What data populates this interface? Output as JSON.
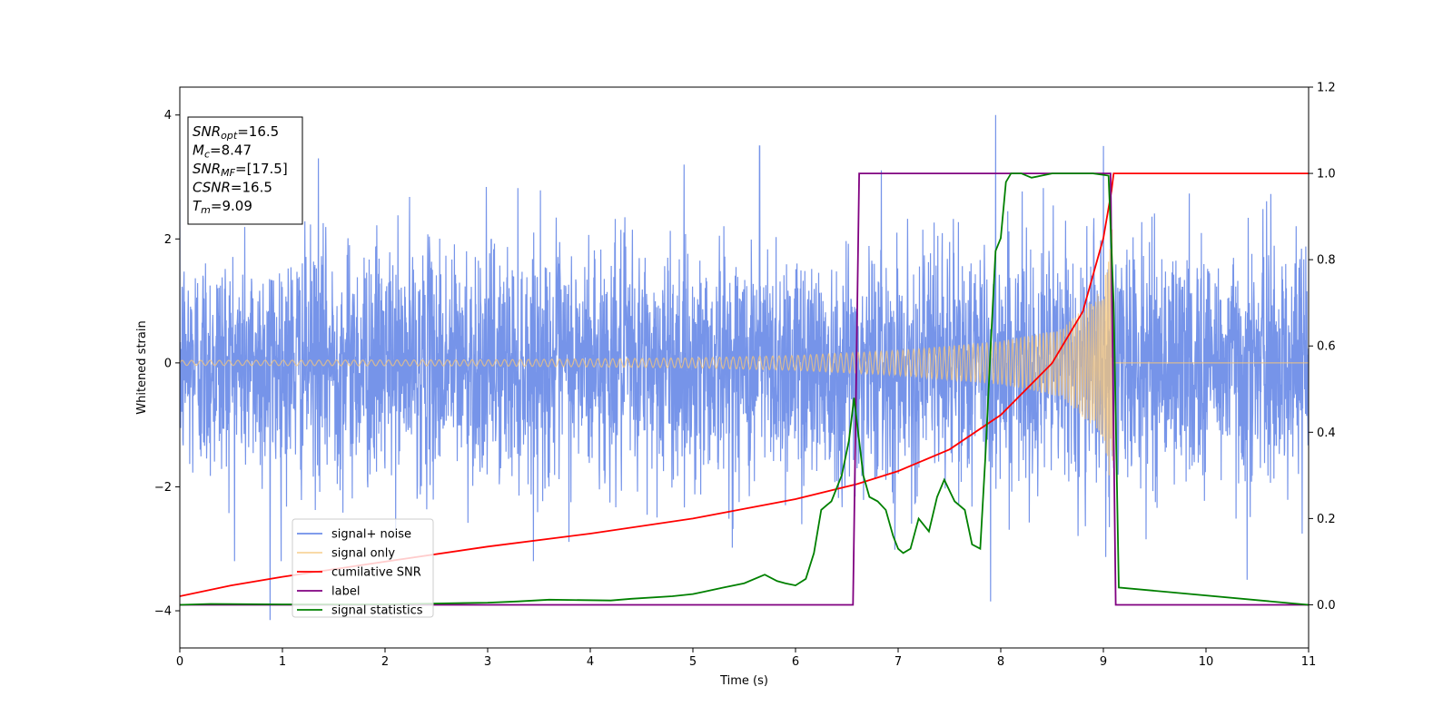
{
  "chart_data": {
    "type": "line",
    "xlabel": "Time (s)",
    "ylabel": "Whitened strain",
    "xlim": [
      0,
      11
    ],
    "ylim": [
      -4.6,
      4.45
    ],
    "y2lim": [
      -0.1,
      1.2
    ],
    "xticks": [
      0,
      1,
      2,
      3,
      4,
      5,
      6,
      7,
      8,
      9,
      10,
      11
    ],
    "yticks": [
      -4,
      -2,
      0,
      2,
      4
    ],
    "y2ticks": [
      0.0,
      0.2,
      0.4,
      0.6,
      0.8,
      1.0,
      1.2
    ],
    "grid": false,
    "legend_position": "lower-left",
    "colors": {
      "signal_noise": "#6f8ee8",
      "signal_only": "#f5c57a",
      "cumulative_snr": "#ff0000",
      "label": "#800080",
      "signal_statistics": "#008000"
    },
    "annotation": {
      "lines": [
        {
          "base": "SNR",
          "sub": "opt",
          "value": "=16.5"
        },
        {
          "base": "M",
          "sub": "c",
          "value": "=8.47"
        },
        {
          "base": "SNR",
          "sub": "MF",
          "value": "=[17.5]"
        },
        {
          "base": "CSNR",
          "sub": "",
          "value": "=16.5"
        },
        {
          "base": "T",
          "sub": "m",
          "value": "=9.09"
        }
      ]
    },
    "series": [
      {
        "name": "signal+ noise",
        "axis": "left",
        "noise_sigma": 0.95,
        "peak_values": [
          [
            0.88,
            -4.15
          ],
          [
            1.35,
            3.3
          ],
          [
            5.65,
            3.5
          ],
          [
            7.95,
            4.0
          ],
          [
            7.9,
            -3.85
          ],
          [
            9.0,
            3.5
          ],
          [
            10.4,
            -3.5
          ]
        ]
      },
      {
        "name": "signal only",
        "axis": "left",
        "merger_time": 9.09,
        "envelope": [
          [
            0,
            0.04
          ],
          [
            3,
            0.05
          ],
          [
            5,
            0.08
          ],
          [
            6,
            0.12
          ],
          [
            7,
            0.2
          ],
          [
            8,
            0.35
          ],
          [
            8.6,
            0.55
          ],
          [
            9.0,
            1.2
          ],
          [
            9.09,
            2.2
          ],
          [
            9.1,
            0.0
          ],
          [
            11,
            0.0
          ]
        ]
      },
      {
        "name": "cumilative SNR",
        "axis": "right",
        "x": [
          0,
          0.5,
          1,
          2,
          3,
          4,
          5,
          6,
          6.6,
          7,
          7.5,
          8,
          8.5,
          8.8,
          9.0,
          9.05,
          9.08,
          9.1,
          11
        ],
        "y": [
          0.02,
          0.045,
          0.065,
          0.1,
          0.135,
          0.165,
          0.2,
          0.245,
          0.28,
          0.31,
          0.36,
          0.44,
          0.56,
          0.68,
          0.85,
          0.92,
          0.96,
          1.0,
          1.0
        ]
      },
      {
        "name": "label",
        "axis": "right",
        "x": [
          0,
          6.56,
          6.62,
          9.07,
          9.12,
          11
        ],
        "y": [
          0,
          0,
          1,
          1,
          0,
          0
        ]
      },
      {
        "name": "signal statistics",
        "axis": "right",
        "x": [
          0,
          0.3,
          1,
          2,
          3,
          3.3,
          3.6,
          4.2,
          4.4,
          4.8,
          5.0,
          5.1,
          5.3,
          5.5,
          5.7,
          5.82,
          5.9,
          6.0,
          6.1,
          6.18,
          6.25,
          6.3,
          6.35,
          6.45,
          6.52,
          6.57,
          6.62,
          6.66,
          6.72,
          6.8,
          6.88,
          6.95,
          7.0,
          7.05,
          7.12,
          7.2,
          7.3,
          7.38,
          7.45,
          7.55,
          7.65,
          7.72,
          7.8,
          7.85,
          7.9,
          7.95,
          8.0,
          8.05,
          8.1,
          8.2,
          8.3,
          8.4,
          8.5,
          8.7,
          8.9,
          9.05,
          9.1,
          9.15,
          11
        ],
        "y": [
          0,
          0.002,
          0.001,
          0.001,
          0.005,
          0.008,
          0.012,
          0.01,
          0.014,
          0.02,
          0.025,
          0.03,
          0.04,
          0.05,
          0.07,
          0.055,
          0.05,
          0.045,
          0.06,
          0.12,
          0.22,
          0.23,
          0.24,
          0.3,
          0.38,
          0.48,
          0.38,
          0.3,
          0.25,
          0.24,
          0.22,
          0.16,
          0.13,
          0.12,
          0.13,
          0.2,
          0.17,
          0.25,
          0.29,
          0.24,
          0.22,
          0.14,
          0.13,
          0.34,
          0.59,
          0.82,
          0.85,
          0.98,
          1.0,
          1.0,
          0.99,
          0.995,
          1.0,
          1.0,
          1.0,
          0.995,
          0.7,
          0.04,
          0.0
        ]
      }
    ]
  }
}
